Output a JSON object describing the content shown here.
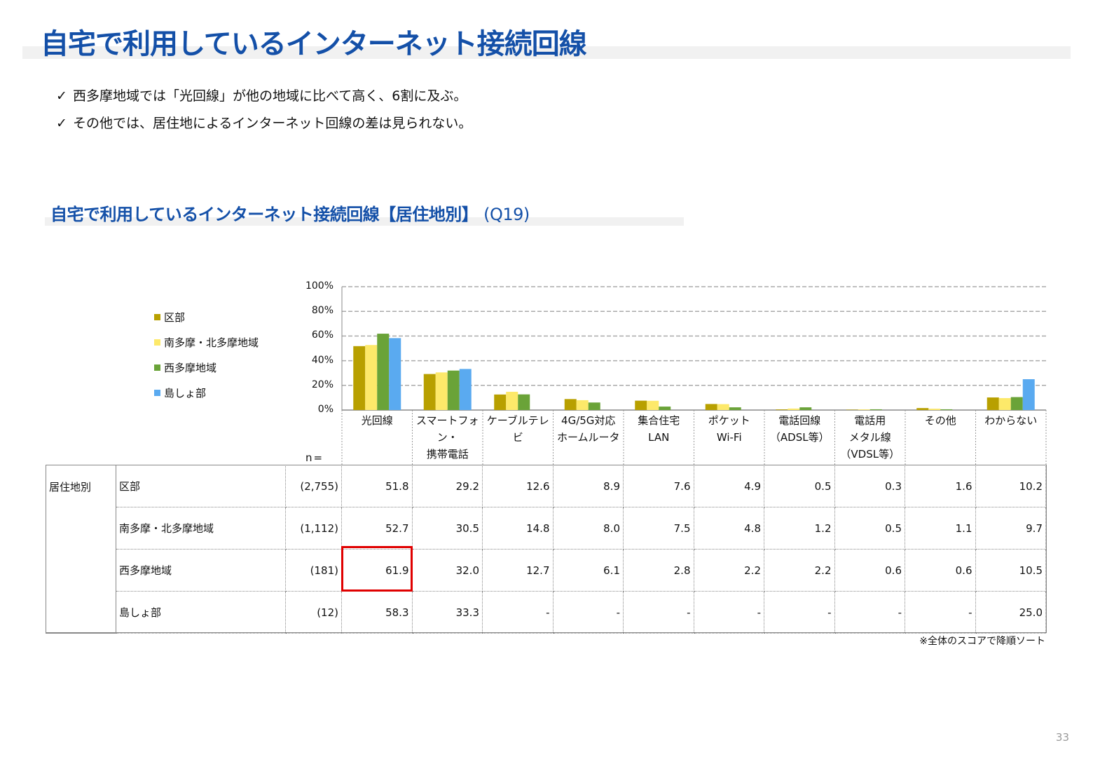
{
  "header": {
    "title": "自宅で利用しているインターネット接続回線"
  },
  "bullets": [
    "西多摩地域では「光回線」が他の地域に比べて高く、6割に及ぶ。",
    "その他では、居住地によるインターネット回線の差は見られない。"
  ],
  "bullet_mark": "✓",
  "section": {
    "title": "自宅で利用しているインターネット接続回線【居住地別】",
    "question": "(Q19)"
  },
  "chart_data": {
    "type": "bar",
    "categories": [
      "光回線",
      "スマートフォン・\n携帯電話",
      "ケーブルテレビ",
      "4G/5G対応\nホームルータ",
      "集合住宅\nLAN",
      "ポケット\nWi-Fi",
      "電話回線\n（ADSL等）",
      "電話用\nメタル線\n（VDSL等）",
      "その他",
      "わからない"
    ],
    "series": [
      {
        "name": "区部",
        "color": "#b8a000",
        "values": [
          51.8,
          29.2,
          12.6,
          8.9,
          7.6,
          4.9,
          0.5,
          0.3,
          1.6,
          10.2
        ]
      },
      {
        "name": "南多摩・北多摩地域",
        "color": "#fde96a",
        "values": [
          52.7,
          30.5,
          14.8,
          8.0,
          7.5,
          4.8,
          1.2,
          0.5,
          1.1,
          9.7
        ]
      },
      {
        "name": "西多摩地域",
        "color": "#6aa338",
        "values": [
          61.9,
          32.0,
          12.7,
          6.1,
          2.8,
          2.2,
          2.2,
          0.6,
          0.6,
          10.5
        ]
      },
      {
        "name": "島しょ部",
        "color": "#5aaaf0",
        "values": [
          58.3,
          33.3,
          0,
          0,
          0,
          0,
          0,
          0,
          0,
          25.0
        ]
      }
    ],
    "yticks": [
      "100%",
      "80%",
      "60%",
      "40%",
      "20%",
      "0%"
    ],
    "ylim": [
      0,
      100
    ],
    "grid": true,
    "legend_position": "left"
  },
  "table": {
    "n_label": "n=",
    "group_label": "居住地別",
    "rows": [
      {
        "label": "区部",
        "n": "(2,755)",
        "cells": [
          "51.8",
          "29.2",
          "12.6",
          "8.9",
          "7.6",
          "4.9",
          "0.5",
          "0.3",
          "1.6",
          "10.2"
        ]
      },
      {
        "label": "南多摩・北多摩地域",
        "n": "(1,112)",
        "cells": [
          "52.7",
          "30.5",
          "14.8",
          "8.0",
          "7.5",
          "4.8",
          "1.2",
          "0.5",
          "1.1",
          "9.7"
        ]
      },
      {
        "label": "西多摩地域",
        "n": "(181)",
        "cells": [
          "61.9",
          "32.0",
          "12.7",
          "6.1",
          "2.8",
          "2.2",
          "2.2",
          "0.6",
          "0.6",
          "10.5"
        ]
      },
      {
        "label": "島しょ部",
        "n": "(12)",
        "cells": [
          "58.3",
          "33.3",
          "-",
          "-",
          "-",
          "-",
          "-",
          "-",
          "-",
          "25.0"
        ]
      }
    ]
  },
  "note": "※全体のスコアで降順ソート",
  "page_number": "33"
}
